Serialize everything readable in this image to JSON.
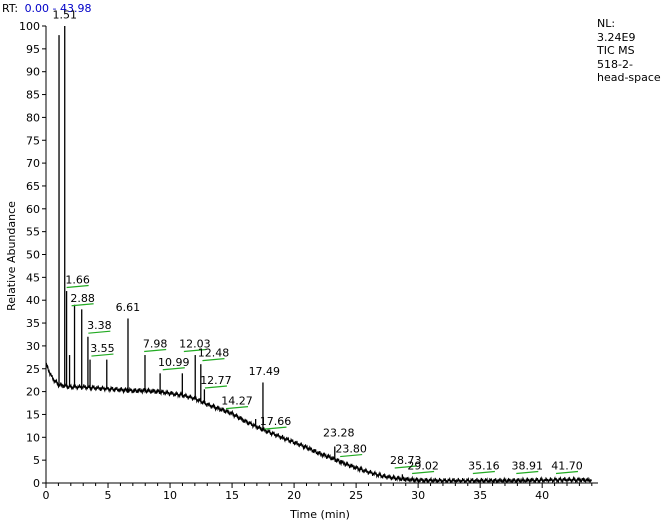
{
  "header": {
    "rt_prefix": "RT:",
    "rt_range": "0.00 - 43.98"
  },
  "info": {
    "lines": [
      "NL:",
      "3.24E9",
      "TIC  MS",
      "518-2-",
      "head-space"
    ]
  },
  "chart_data": {
    "type": "line",
    "title": "",
    "xlabel": "Time (min)",
    "ylabel": "Relative Abundance",
    "xlim": [
      0,
      43.98
    ],
    "ylim": [
      0,
      100
    ],
    "xticks": [
      0,
      5,
      10,
      15,
      20,
      25,
      30,
      35,
      40
    ],
    "yticks": [
      0,
      5,
      10,
      15,
      20,
      25,
      30,
      35,
      40,
      45,
      50,
      55,
      60,
      65,
      70,
      75,
      80,
      85,
      90,
      95,
      100
    ],
    "grid": false,
    "series": [
      {
        "baseline": [
          [
            0,
            26
          ],
          [
            0.5,
            23
          ],
          [
            1.0,
            21.5
          ],
          [
            2.0,
            21
          ],
          [
            3.0,
            21
          ],
          [
            4.0,
            20.8
          ],
          [
            5.0,
            20.6
          ],
          [
            6.0,
            20.4
          ],
          [
            7.0,
            20.2
          ],
          [
            8.0,
            20.2
          ],
          [
            9.0,
            20
          ],
          [
            10.0,
            19.6
          ],
          [
            11.0,
            19.2
          ],
          [
            12.0,
            18.5
          ],
          [
            13.0,
            17.2
          ],
          [
            14.0,
            16.2
          ],
          [
            15.0,
            15.2
          ],
          [
            16.0,
            13.6
          ],
          [
            17.0,
            12.3
          ],
          [
            18.0,
            11.1
          ],
          [
            19.0,
            10.0
          ],
          [
            20.0,
            8.9
          ],
          [
            21.0,
            7.8
          ],
          [
            22.0,
            6.5
          ],
          [
            23.0,
            5.5
          ],
          [
            24.0,
            4.3
          ],
          [
            25.0,
            3.3
          ],
          [
            26.0,
            2.4
          ],
          [
            27.0,
            1.6
          ],
          [
            28.0,
            1.1
          ],
          [
            29.0,
            0.8
          ],
          [
            30.0,
            0.6
          ],
          [
            32.0,
            0.5
          ],
          [
            35.0,
            0.5
          ],
          [
            38.0,
            0.5
          ],
          [
            40.0,
            0.6
          ],
          [
            42.0,
            0.7
          ],
          [
            43.98,
            0.6
          ]
        ],
        "peaks": [
          [
            1.05,
            98
          ],
          [
            1.51,
            100
          ],
          [
            1.66,
            42
          ],
          [
            1.9,
            28
          ],
          [
            2.3,
            39
          ],
          [
            2.88,
            38
          ],
          [
            3.38,
            32
          ],
          [
            3.55,
            27
          ],
          [
            4.9,
            27
          ],
          [
            6.61,
            36
          ],
          [
            7.98,
            28
          ],
          [
            9.2,
            24
          ],
          [
            10.99,
            24
          ],
          [
            12.03,
            28
          ],
          [
            12.48,
            26
          ],
          [
            12.77,
            20.5
          ],
          [
            14.27,
            16
          ],
          [
            16.9,
            14
          ],
          [
            17.49,
            22
          ],
          [
            17.66,
            11.5
          ],
          [
            19.1,
            9.5
          ],
          [
            21.0,
            8
          ],
          [
            22.4,
            6
          ],
          [
            23.28,
            8
          ],
          [
            23.8,
            5
          ],
          [
            26.5,
            2
          ],
          [
            28.73,
            1.9
          ],
          [
            29.02,
            1.2
          ],
          [
            35.16,
            0.9
          ],
          [
            38.91,
            0.9
          ],
          [
            41.7,
            1.0
          ]
        ]
      }
    ],
    "annotations": [
      {
        "label": "1.51",
        "x": 1.51
      },
      {
        "label": "1.66",
        "x": 1.66
      },
      {
        "label": "2.88",
        "x": 2.88
      },
      {
        "label": "3.38",
        "x": 3.38
      },
      {
        "label": "3.55",
        "x": 3.55
      },
      {
        "label": "6.61",
        "x": 6.61
      },
      {
        "label": "7.98",
        "x": 7.98
      },
      {
        "label": "10.99",
        "x": 10.99
      },
      {
        "label": "12.03",
        "x": 12.03
      },
      {
        "label": "12.48",
        "x": 12.48
      },
      {
        "label": "12.77",
        "x": 12.77
      },
      {
        "label": "14.27",
        "x": 14.27
      },
      {
        "label": "17.49",
        "x": 17.49
      },
      {
        "label": "17.66",
        "x": 17.66
      },
      {
        "label": "23.28",
        "x": 23.28
      },
      {
        "label": "23.80",
        "x": 23.8
      },
      {
        "label": "28.73",
        "x": 28.73
      },
      {
        "label": "29.02",
        "x": 29.02
      },
      {
        "label": "35.16",
        "x": 35.16
      },
      {
        "label": "38.91",
        "x": 38.91
      },
      {
        "label": "41.70",
        "x": 41.7
      }
    ],
    "colors": {
      "trace": "#000000",
      "peak_marker": "#22aa22",
      "rt_value": "#0000c8"
    }
  }
}
